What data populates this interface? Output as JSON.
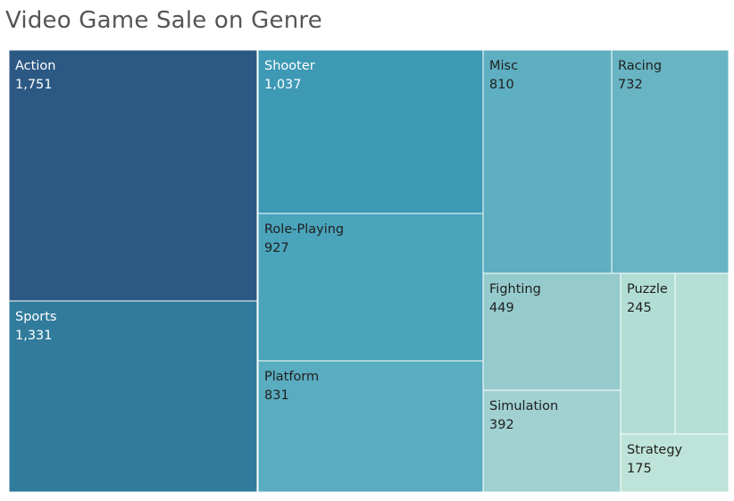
{
  "chart_data": {
    "type": "treemap",
    "title": "Video Game Sale on Genre",
    "items": [
      {
        "label": "Action",
        "value_label": "1,751",
        "value": 1751,
        "color": "#2c5884",
        "text_color": "#ffffff"
      },
      {
        "label": "Sports",
        "value_label": "1,331",
        "value": 1331,
        "color": "#317b9c",
        "text_color": "#ffffff"
      },
      {
        "label": "Shooter",
        "value_label": "1,037",
        "value": 1037,
        "color": "#3e99b5",
        "text_color": "#ffffff"
      },
      {
        "label": "Role-Playing",
        "value_label": "927",
        "value": 927,
        "color": "#4aa4bb",
        "text_color": "#1f1f1f"
      },
      {
        "label": "Platform",
        "value_label": "831",
        "value": 831,
        "color": "#5aacc0",
        "text_color": "#1f1f1f"
      },
      {
        "label": "Misc",
        "value_label": "810",
        "value": 810,
        "color": "#5eafc1",
        "text_color": "#1f1f1f"
      },
      {
        "label": "Racing",
        "value_label": "732",
        "value": 732,
        "color": "#68b4c3",
        "text_color": "#1f1f1f"
      },
      {
        "label": "Fighting",
        "value_label": "449",
        "value": 449,
        "color": "#96cbcd",
        "text_color": "#1f1f1f"
      },
      {
        "label": "Simulation",
        "value_label": "392",
        "value": 392,
        "color": "#a0d0d0",
        "text_color": "#1f1f1f"
      },
      {
        "label": "Puzzle",
        "value_label": "245",
        "value": 245,
        "color": "#b2ddd5",
        "text_color": "#1f1f1f"
      },
      {
        "label": "",
        "value_label": "",
        "value": 245,
        "color": "#b6dfd6",
        "text_color": "#1f1f1f"
      },
      {
        "label": "Strategy",
        "value_label": "175",
        "value": 175,
        "color": "#bee3d9",
        "text_color": "#1f1f1f"
      }
    ]
  }
}
